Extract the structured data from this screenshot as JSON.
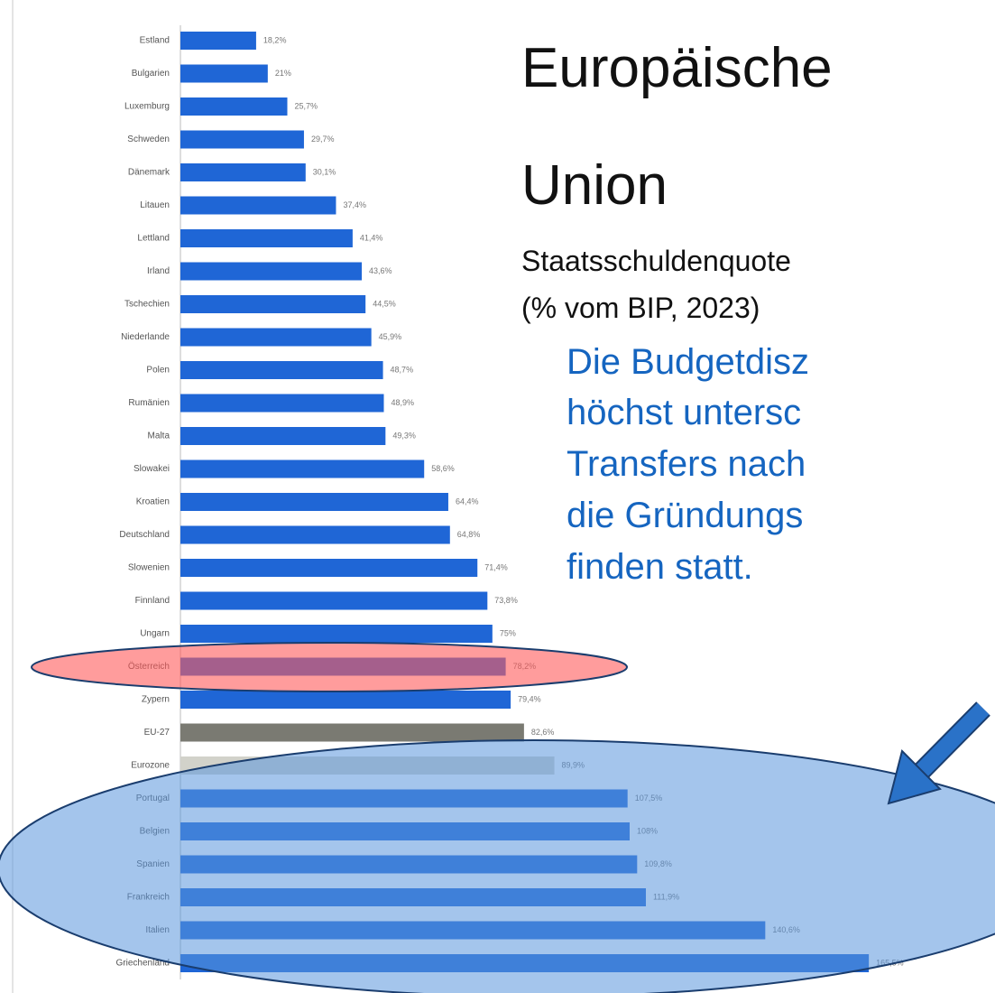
{
  "chart_data": {
    "type": "hbar",
    "title": [
      "Europäische",
      "Union"
    ],
    "subtitle": [
      "Staatsschuldenquote",
      "(% vom BIP, 2023)"
    ],
    "annotation": [
      "Die Budgetdisz",
      "höchst untersc",
      "Transfers nach",
      "die Gründungs",
      "finden statt."
    ],
    "categories": [
      "Estland",
      "Bulgarien",
      "Luxemburg",
      "Schweden",
      "Dänemark",
      "Litauen",
      "Lettland",
      "Irland",
      "Tschechien",
      "Niederlande",
      "Polen",
      "Rumänien",
      "Malta",
      "Slowakei",
      "Kroatien",
      "Deutschland",
      "Slowenien",
      "Finnland",
      "Ungarn",
      "Österreich",
      "Zypern",
      "EU-27",
      "Eurozone",
      "Portugal",
      "Belgien",
      "Spanien",
      "Frankreich",
      "Italien",
      "Griechenland"
    ],
    "values": [
      18.2,
      21,
      25.7,
      29.7,
      30.1,
      37.4,
      41.4,
      43.6,
      44.5,
      45.9,
      48.7,
      48.9,
      49.3,
      58.6,
      64.4,
      64.8,
      71.4,
      73.8,
      75,
      78.2,
      79.4,
      82.6,
      89.9,
      107.5,
      108,
      109.8,
      111.9,
      140.6,
      165.5
    ],
    "value_labels": [
      "18,2%",
      "21%",
      "25,7%",
      "29,7%",
      "30,1%",
      "37,4%",
      "41,4%",
      "43,6%",
      "44,5%",
      "45,9%",
      "48,7%",
      "48,9%",
      "49,3%",
      "58,6%",
      "64,4%",
      "64,8%",
      "71,4%",
      "73,8%",
      "75%",
      "78,2%",
      "79,4%",
      "82,6%",
      "89,9%",
      "107,5%",
      "108%",
      "109,8%",
      "111,9%",
      "140,6%",
      "165,5%"
    ],
    "colors": [
      "#1f66d6",
      "#1f66d6",
      "#1f66d6",
      "#1f66d6",
      "#1f66d6",
      "#1f66d6",
      "#1f66d6",
      "#1f66d6",
      "#1f66d6",
      "#1f66d6",
      "#1f66d6",
      "#1f66d6",
      "#1f66d6",
      "#1f66d6",
      "#1f66d6",
      "#1f66d6",
      "#1f66d6",
      "#1f66d6",
      "#1f66d6",
      "#1f66d6",
      "#1f66d6",
      "#7a7a72",
      "#d2d2ca",
      "#1f66d6",
      "#1f66d6",
      "#1f66d6",
      "#1f66d6",
      "#1f66d6",
      "#1f66d6"
    ],
    "xlim": [
      0,
      180
    ]
  }
}
